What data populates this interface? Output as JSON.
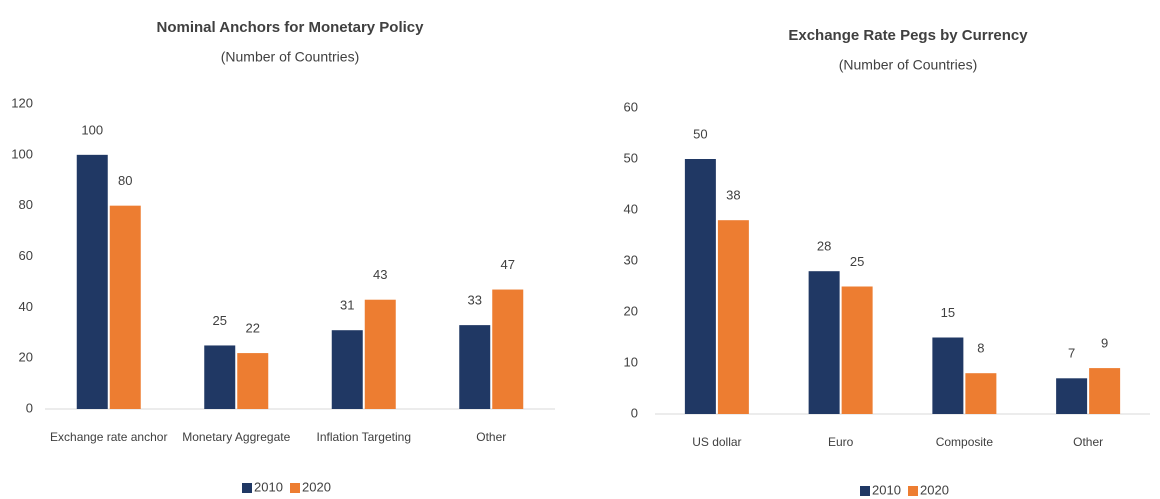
{
  "chart_data": [
    {
      "type": "bar",
      "title": "Nominal Anchors for Monetary Policy",
      "subtitle": "(Number of Countries)",
      "categories": [
        "Exchange rate anchor",
        "Monetary Aggregate",
        "Inflation Targeting",
        "Other"
      ],
      "series": [
        {
          "name": "2010",
          "color": "#203864",
          "values": [
            100,
            25,
            31,
            33
          ]
        },
        {
          "name": "2020",
          "color": "#ed7d31",
          "values": [
            80,
            22,
            43,
            47
          ]
        }
      ],
      "ylim": [
        0,
        120
      ],
      "yticks": [
        0,
        20,
        40,
        60,
        80,
        100,
        120
      ],
      "grid": false,
      "legend": "bottom"
    },
    {
      "type": "bar",
      "title": "Exchange Rate Pegs by Currency",
      "subtitle": "(Number of Countries)",
      "categories": [
        "US dollar",
        "Euro",
        "Composite",
        "Other"
      ],
      "series": [
        {
          "name": "2010",
          "color": "#203864",
          "values": [
            50,
            28,
            15,
            7
          ]
        },
        {
          "name": "2020",
          "color": "#ed7d31",
          "values": [
            38,
            25,
            8,
            9
          ]
        }
      ],
      "ylim": [
        0,
        60
      ],
      "yticks": [
        0,
        10,
        20,
        30,
        40,
        50,
        60
      ],
      "grid": false,
      "legend": "bottom"
    }
  ]
}
